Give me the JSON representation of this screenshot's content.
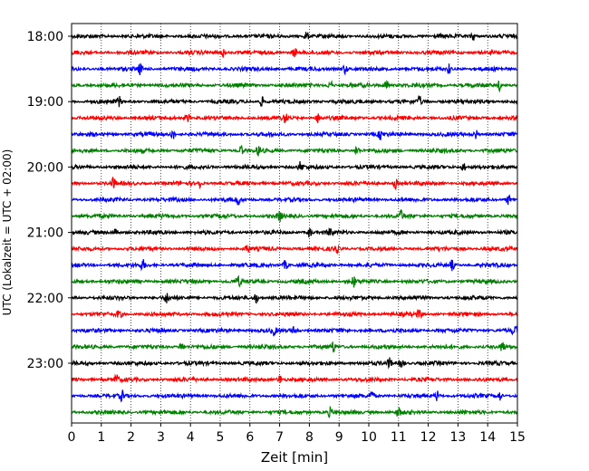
{
  "chart_data": {
    "type": "line",
    "title": "",
    "xlabel": "Zeit  [min]",
    "ylabel": "UTC (Lokalzeit = UTC + 02:00)",
    "xlim": [
      0,
      15
    ],
    "x_ticks": [
      "0",
      "1",
      "2",
      "3",
      "4",
      "5",
      "6",
      "7",
      "8",
      "9",
      "10",
      "11",
      "12",
      "13",
      "14",
      "15"
    ],
    "y_tick_labels": [
      "18:00",
      "19:00",
      "20:00",
      "21:00",
      "22:00",
      "23:00"
    ],
    "row_interval_minutes": 15,
    "first_row": "18:00",
    "last_row": "23:45",
    "row_count": 24,
    "grid": "vertical dotted lines at each minute",
    "series_colors": [
      "#000000",
      "#ff0000",
      "#0000ff",
      "#008000"
    ],
    "series": [
      {
        "row": "18:00",
        "color": "#000000",
        "events_min": [
          13.5,
          7.9
        ]
      },
      {
        "row": "18:15",
        "color": "#ff0000",
        "events_min": [
          5.1,
          7.5
        ]
      },
      {
        "row": "18:30",
        "color": "#0000ff",
        "events_min": [
          2.3,
          9.2,
          12.7
        ]
      },
      {
        "row": "18:45",
        "color": "#008000",
        "events_min": [
          8.7,
          10.6,
          14.4
        ]
      },
      {
        "row": "19:00",
        "color": "#000000",
        "events_min": [
          1.6,
          6.4,
          11.7
        ]
      },
      {
        "row": "19:15",
        "color": "#ff0000",
        "events_min": [
          3.9,
          7.2,
          8.3
        ]
      },
      {
        "row": "19:30",
        "color": "#0000ff",
        "events_min": [
          3.4,
          10.4,
          13.6
        ]
      },
      {
        "row": "19:45",
        "color": "#008000",
        "events_min": [
          5.7,
          6.3,
          9.6
        ]
      },
      {
        "row": "20:00",
        "color": "#000000",
        "events_min": [
          7.7,
          13.2
        ]
      },
      {
        "row": "20:15",
        "color": "#ff0000",
        "events_min": [
          1.4,
          4.3,
          10.9
        ]
      },
      {
        "row": "20:30",
        "color": "#0000ff",
        "events_min": [
          5.6,
          14.7
        ]
      },
      {
        "row": "20:45",
        "color": "#008000",
        "events_min": [
          7.0,
          11.1
        ]
      },
      {
        "row": "21:00",
        "color": "#000000",
        "events_min": [
          1.5,
          8.0,
          8.7
        ]
      },
      {
        "row": "21:15",
        "color": "#ff0000",
        "events_min": [
          5.9,
          8.9
        ]
      },
      {
        "row": "21:30",
        "color": "#0000ff",
        "events_min": [
          2.4,
          7.2,
          12.8
        ]
      },
      {
        "row": "21:45",
        "color": "#008000",
        "events_min": [
          5.6,
          9.5
        ]
      },
      {
        "row": "22:00",
        "color": "#000000",
        "events_min": [
          3.2,
          6.2
        ]
      },
      {
        "row": "22:15",
        "color": "#ff0000",
        "events_min": [
          1.6,
          11.7
        ]
      },
      {
        "row": "22:30",
        "color": "#0000ff",
        "events_min": [
          6.8,
          7.5,
          14.9
        ]
      },
      {
        "row": "22:45",
        "color": "#008000",
        "events_min": [
          3.7,
          8.8,
          14.5
        ]
      },
      {
        "row": "23:00",
        "color": "#000000",
        "events_min": [
          10.7,
          11.1
        ]
      },
      {
        "row": "23:15",
        "color": "#ff0000",
        "events_min": [
          1.5,
          7.0
        ]
      },
      {
        "row": "23:30",
        "color": "#0000ff",
        "events_min": [
          1.7,
          10.1,
          12.3,
          14.4
        ]
      },
      {
        "row": "23:45",
        "color": "#008000",
        "events_min": [
          8.7,
          11.0
        ]
      }
    ]
  }
}
